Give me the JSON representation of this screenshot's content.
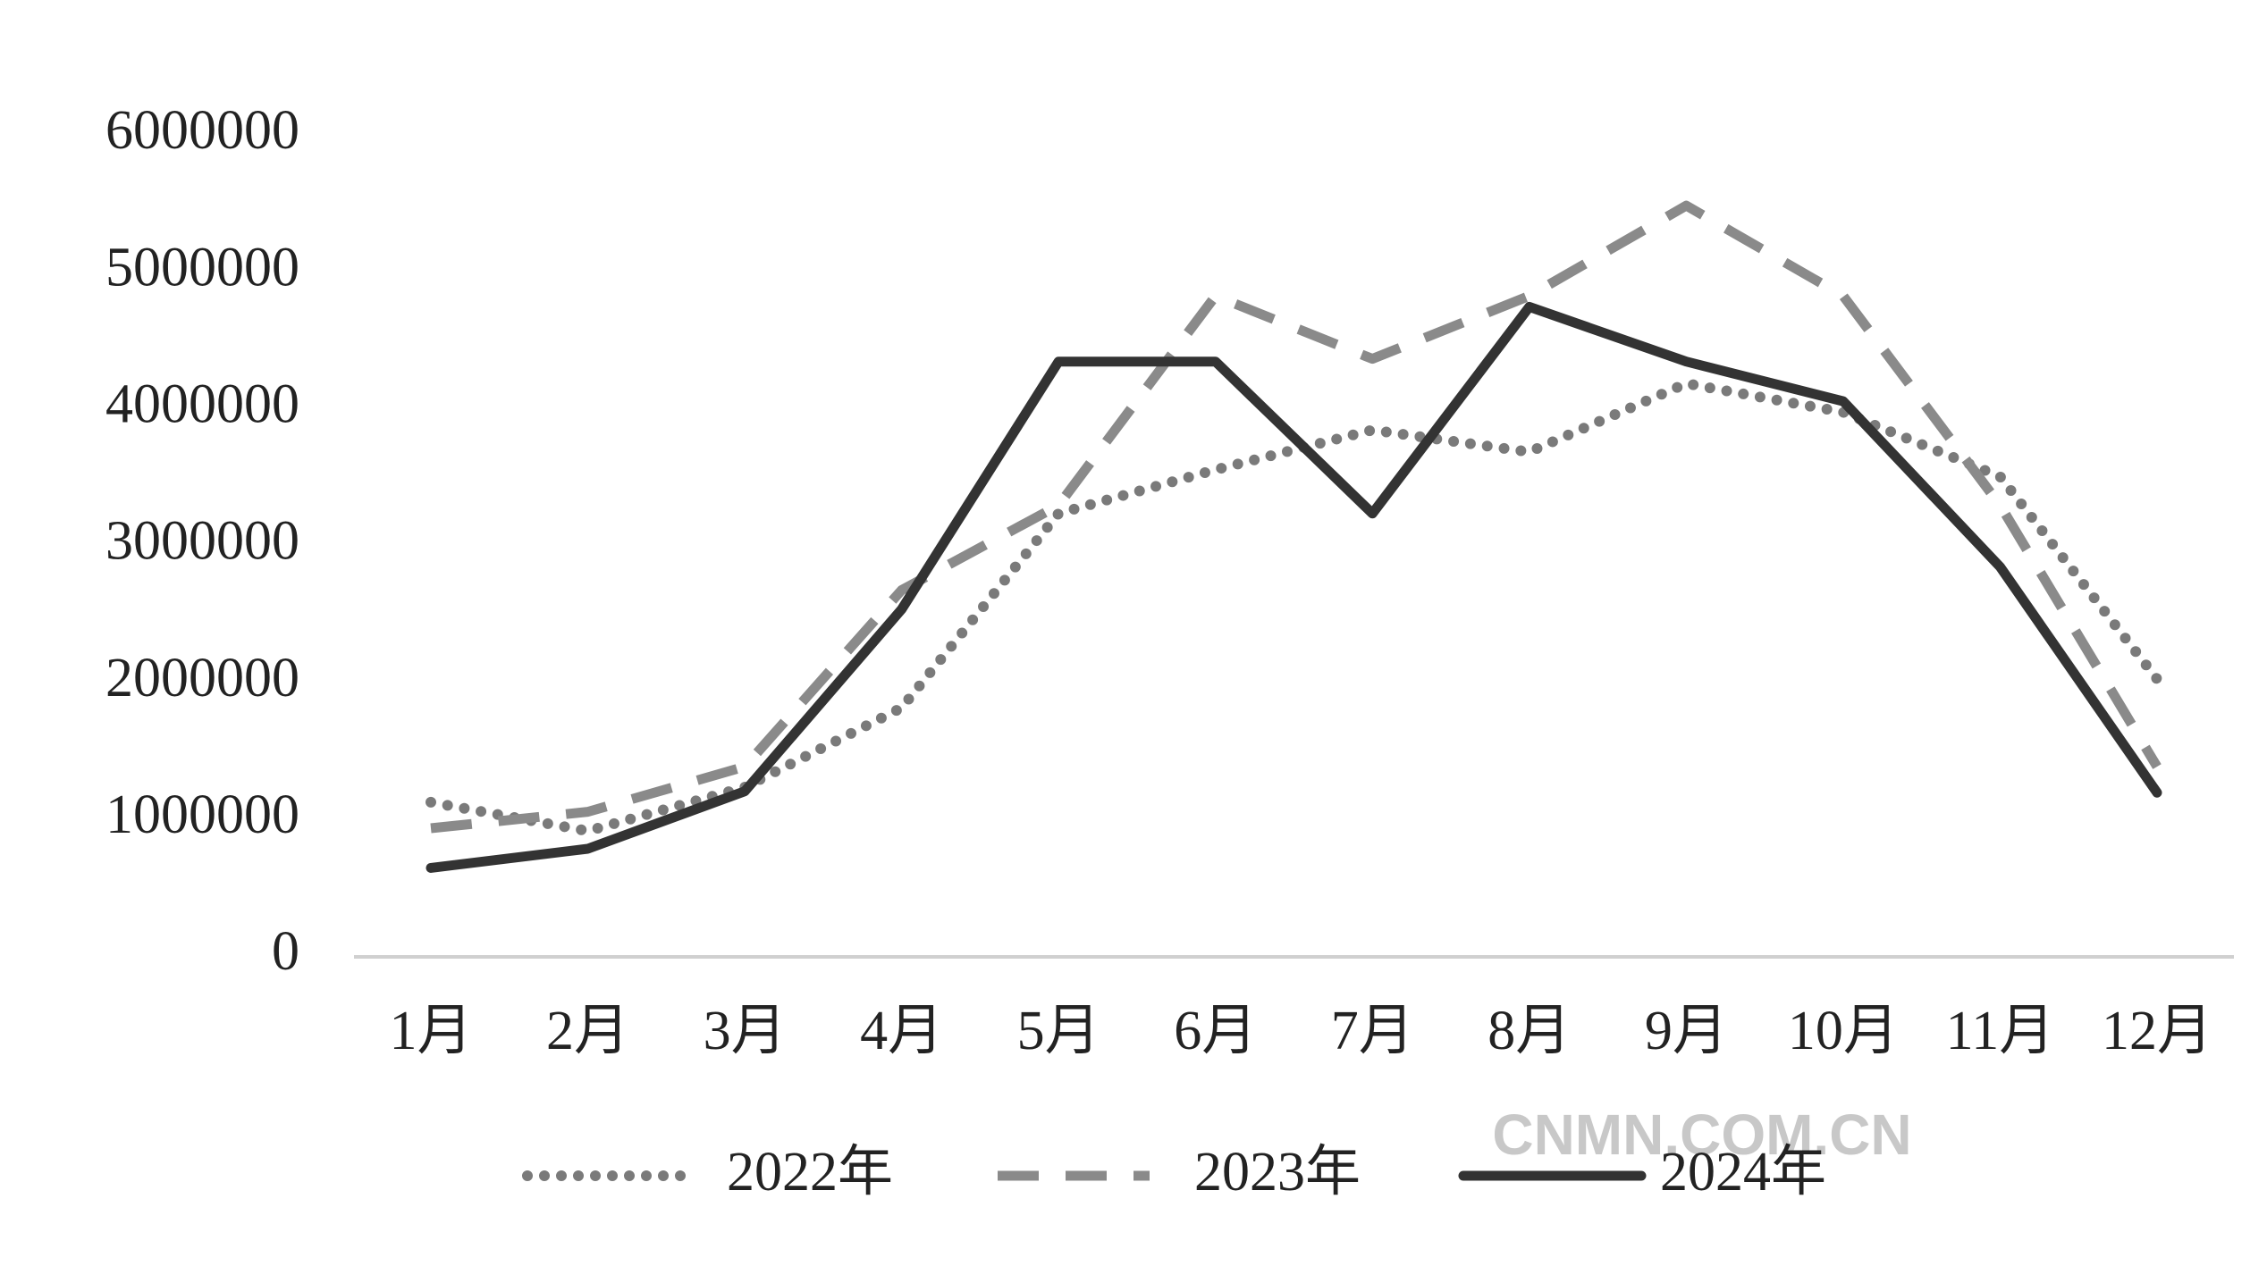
{
  "chart_data": {
    "type": "line",
    "categories": [
      "1月",
      "2月",
      "3月",
      "4月",
      "5月",
      "6月",
      "7月",
      "8月",
      "9月",
      "10月",
      "11月",
      "12月"
    ],
    "series": [
      {
        "name": "2022年",
        "color": "#7a7a7a",
        "dash": "dotted",
        "values": [
          1130000,
          920000,
          1240000,
          1820000,
          3240000,
          3560000,
          3850000,
          3690000,
          4190000,
          3980000,
          3510000,
          2030000
        ]
      },
      {
        "name": "2023年",
        "color": "#8a8a8a",
        "dash": "dashed",
        "values": [
          940000,
          1060000,
          1390000,
          2680000,
          3300000,
          4830000,
          4370000,
          4830000,
          5490000,
          4830000,
          3300000,
          1390000
        ]
      },
      {
        "name": "2024年",
        "color": "#333333",
        "dash": "solid",
        "values": [
          650000,
          790000,
          1210000,
          2540000,
          4350000,
          4350000,
          3240000,
          4750000,
          4350000,
          4060000,
          2850000,
          1200000
        ]
      }
    ],
    "ylim": [
      0,
      6000000
    ],
    "yticks": [
      0,
      1000000,
      2000000,
      3000000,
      4000000,
      5000000,
      6000000
    ],
    "grid": false,
    "legend": "bottom",
    "watermark": "CNMN.COM.CN"
  }
}
